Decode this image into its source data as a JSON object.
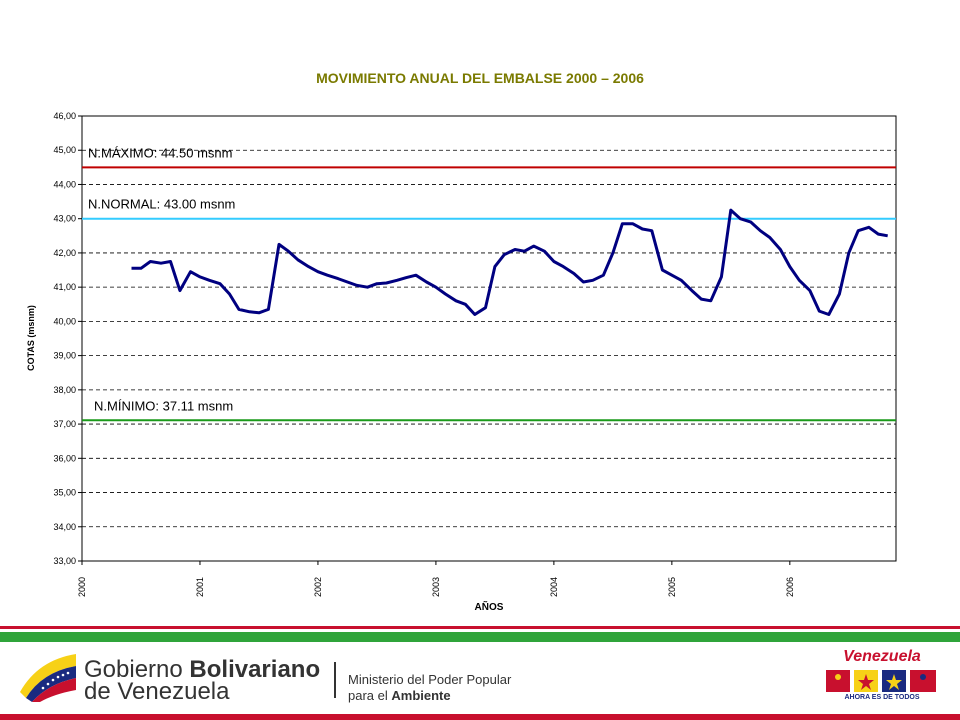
{
  "chart_data": {
    "type": "line",
    "title": "MOVIMIENTO ANUAL DEL EMBALSE 2000 – 2006",
    "xlabel": "AÑOS",
    "ylabel": "COTAS (msnm)",
    "ylim": [
      33,
      46
    ],
    "xlim": [
      2000,
      2006.9
    ],
    "grid": "horizontal dashed",
    "y_ticks": [
      "33,00",
      "34,00",
      "35,00",
      "36,00",
      "37,00",
      "38,00",
      "39,00",
      "40,00",
      "41,00",
      "42,00",
      "43,00",
      "44,00",
      "45,00",
      "46,00"
    ],
    "x_ticks": [
      "2000",
      "2001",
      "2002",
      "2003",
      "2004",
      "2005",
      "2006"
    ],
    "reference_lines": [
      {
        "label": "N.MÁXIMO: 44.50 msnm",
        "value": 44.5,
        "color": "#c00000"
      },
      {
        "label": "N.NORMAL: 43.00  msnm",
        "value": 43.0,
        "color": "#33ccff"
      },
      {
        "label": "N.MÍNIMO: 37.11  msnm",
        "value": 37.11,
        "color": "#1a9a1a"
      }
    ],
    "series": [
      {
        "color": "#000080",
        "x": [
          2000.42,
          2000.5,
          2000.58,
          2000.67,
          2000.75,
          2000.83,
          2000.92,
          2001.0,
          2001.08,
          2001.17,
          2001.25,
          2001.33,
          2001.42,
          2001.5,
          2001.58,
          2001.67,
          2001.75,
          2001.83,
          2001.92,
          2002.0,
          2002.08,
          2002.17,
          2002.25,
          2002.33,
          2002.42,
          2002.5,
          2002.58,
          2002.67,
          2002.75,
          2002.83,
          2002.92,
          2003.0,
          2003.08,
          2003.17,
          2003.25,
          2003.33,
          2003.42,
          2003.5,
          2003.58,
          2003.67,
          2003.75,
          2003.83,
          2003.92,
          2004.0,
          2004.08,
          2004.17,
          2004.25,
          2004.33,
          2004.42,
          2004.5,
          2004.58,
          2004.67,
          2004.75,
          2004.83,
          2004.92,
          2005.0,
          2005.08,
          2005.17,
          2005.25,
          2005.33,
          2005.42,
          2005.5,
          2005.58,
          2005.67,
          2005.75,
          2005.83,
          2005.92,
          2006.0,
          2006.08,
          2006.17,
          2006.25,
          2006.33,
          2006.42,
          2006.5,
          2006.58,
          2006.67,
          2006.75,
          2006.83
        ],
        "y": [
          41.55,
          41.55,
          41.75,
          41.7,
          41.75,
          40.9,
          41.45,
          41.3,
          41.2,
          41.1,
          40.8,
          40.35,
          40.28,
          40.25,
          40.35,
          42.25,
          42.05,
          41.8,
          41.6,
          41.45,
          41.35,
          41.25,
          41.15,
          41.05,
          41.0,
          41.1,
          41.12,
          41.2,
          41.28,
          41.35,
          41.15,
          41.0,
          40.8,
          40.6,
          40.5,
          40.2,
          40.4,
          41.6,
          41.95,
          42.1,
          42.05,
          42.2,
          42.05,
          41.75,
          41.6,
          41.4,
          41.15,
          41.2,
          41.35,
          42.0,
          42.85,
          42.85,
          42.7,
          42.65,
          41.5,
          41.35,
          41.2,
          40.9,
          40.65,
          40.6,
          41.3,
          43.25,
          43.0,
          42.9,
          42.65,
          42.45,
          42.1,
          41.6,
          41.2,
          40.9,
          40.3,
          40.2,
          40.8,
          42.0,
          42.65,
          42.75,
          42.55,
          42.5
        ]
      }
    ]
  },
  "footer": {
    "gov_line1_light": "Gobierno ",
    "gov_line1_bold": "Bolivariano",
    "gov_line2": "de Venezuela",
    "ministry_line1": "Ministerio del Poder Popular",
    "ministry_line2_light": "para el ",
    "ministry_line2_bold": "Ambiente",
    "venezuela_word": "Venezuela",
    "venezuela_tagline": "AHORA ES DE TODOS",
    "colors": {
      "red": "#c8102e",
      "green": "#2fa43a",
      "yellow": "#f7d117",
      "blue": "#1a2a80"
    }
  }
}
